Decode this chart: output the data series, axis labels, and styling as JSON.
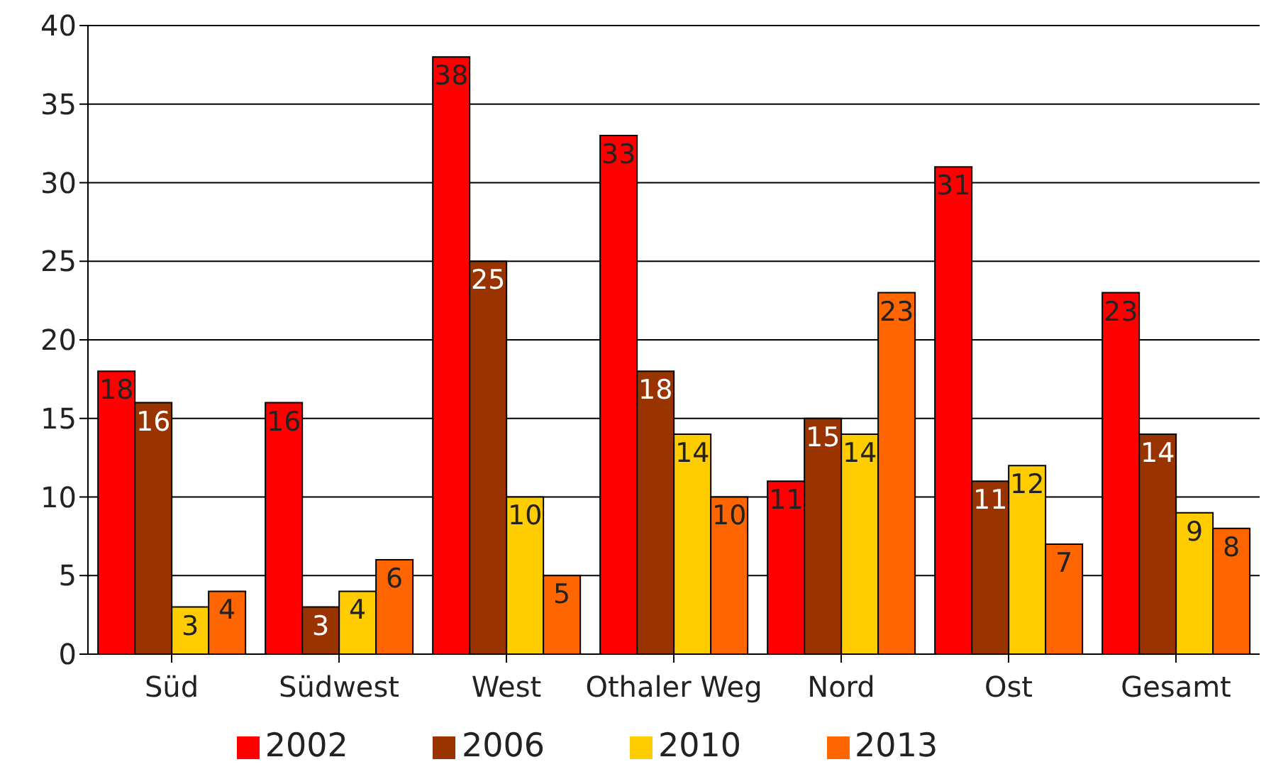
{
  "chart_data": {
    "type": "bar",
    "categories": [
      "Süd",
      "Südwest",
      "West",
      "Othaler Weg",
      "Nord",
      "Ost",
      "Gesamt"
    ],
    "series": [
      {
        "name": "2002",
        "color": "#ff0000",
        "values": [
          18,
          16,
          38,
          33,
          11,
          31,
          23
        ]
      },
      {
        "name": "2006",
        "color": "#993300",
        "values": [
          16,
          3,
          25,
          18,
          15,
          11,
          14
        ]
      },
      {
        "name": "2010",
        "color": "#ffcc00",
        "values": [
          3,
          4,
          10,
          14,
          14,
          12,
          9
        ]
      },
      {
        "name": "2013",
        "color": "#ff6600",
        "values": [
          4,
          6,
          5,
          10,
          23,
          7,
          8
        ]
      }
    ],
    "ylim": [
      0,
      40
    ],
    "yticks": [
      0,
      5,
      10,
      15,
      20,
      25,
      30,
      35,
      40
    ],
    "grid": "y",
    "legend": "bottom",
    "data_labels": true
  }
}
